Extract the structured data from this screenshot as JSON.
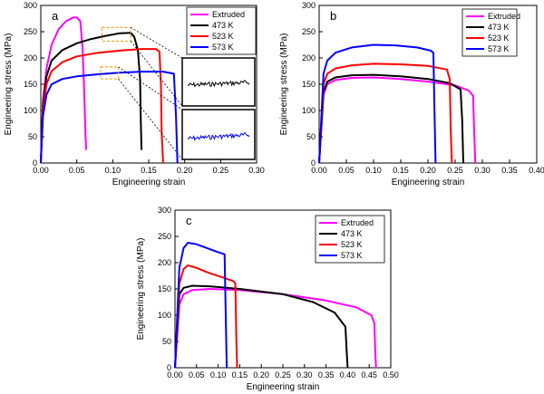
{
  "colors": {
    "Extruded": "#ff00ff",
    "473 K": "#000000",
    "523 K": "#ff0000",
    "573 K": "#0000ff",
    "zoom_box": "#f5a623"
  },
  "chart_data": [
    {
      "type": "line",
      "panel": "a",
      "xlabel": "Engineering strain",
      "ylabel": "Engineering stress  (MPa)",
      "xlim": [
        0.0,
        0.3
      ],
      "ylim": [
        0,
        300
      ],
      "xticks": [
        "0.00",
        "0.05",
        "0.10",
        "0.15",
        "0.20",
        "0.25",
        "0.30"
      ],
      "yticks": [
        "0",
        "50",
        "100",
        "150",
        "200",
        "250",
        "300"
      ],
      "legend": [
        "Extruded",
        "473 K",
        "523 K",
        "573 K"
      ],
      "series": [
        {
          "name": "Extruded",
          "x": [
            0,
            0.003,
            0.008,
            0.015,
            0.025,
            0.035,
            0.045,
            0.05,
            0.055,
            0.058,
            0.06,
            0.062,
            0.063
          ],
          "y": [
            0,
            120,
            180,
            225,
            255,
            270,
            277,
            277,
            270,
            220,
            150,
            60,
            25
          ]
        },
        {
          "name": "473 K",
          "x": [
            0,
            0.003,
            0.008,
            0.015,
            0.03,
            0.05,
            0.07,
            0.09,
            0.11,
            0.125,
            0.13,
            0.135,
            0.138,
            0.139,
            0.14
          ],
          "y": [
            0,
            110,
            165,
            195,
            215,
            228,
            236,
            242,
            247,
            248,
            240,
            215,
            160,
            80,
            25
          ]
        },
        {
          "name": "523 K",
          "x": [
            0,
            0.003,
            0.008,
            0.015,
            0.03,
            0.05,
            0.08,
            0.11,
            0.14,
            0.16,
            0.165,
            0.167,
            0.168,
            0.17
          ],
          "y": [
            0,
            100,
            150,
            175,
            192,
            203,
            210,
            214,
            217,
            217,
            212,
            150,
            60,
            0
          ]
        },
        {
          "name": "573 K",
          "x": [
            0,
            0.003,
            0.008,
            0.015,
            0.03,
            0.05,
            0.08,
            0.11,
            0.14,
            0.17,
            0.185,
            0.188,
            0.19
          ],
          "y": [
            0,
            90,
            130,
            150,
            160,
            165,
            169,
            172,
            174,
            174,
            170,
            90,
            0
          ]
        }
      ]
    },
    {
      "type": "line",
      "panel": "b",
      "xlabel": "Engineering strain",
      "ylabel": "Engineering stress (MPa)",
      "xlim": [
        0.0,
        0.4
      ],
      "ylim": [
        0,
        300
      ],
      "xticks": [
        "0.00",
        "0.05",
        "0.10",
        "0.15",
        "0.20",
        "0.25",
        "0.30",
        "0.35",
        "0.40"
      ],
      "yticks": [
        "0",
        "50",
        "100",
        "150",
        "200",
        "250",
        "300"
      ],
      "legend": [
        "Extruded",
        "473 K",
        "523 K",
        "573 K"
      ],
      "series": [
        {
          "name": "Extruded",
          "x": [
            0,
            0.008,
            0.015,
            0.03,
            0.06,
            0.1,
            0.15,
            0.2,
            0.25,
            0.275,
            0.283,
            0.285,
            0.287
          ],
          "y": [
            0,
            130,
            150,
            158,
            162,
            163,
            160,
            155,
            148,
            138,
            128,
            60,
            0
          ]
        },
        {
          "name": "473 K",
          "x": [
            0,
            0.008,
            0.015,
            0.03,
            0.06,
            0.1,
            0.15,
            0.2,
            0.24,
            0.26,
            0.263,
            0.265
          ],
          "y": [
            0,
            135,
            155,
            163,
            167,
            168,
            165,
            160,
            152,
            140,
            80,
            0
          ]
        },
        {
          "name": "523 K",
          "x": [
            0,
            0.008,
            0.015,
            0.03,
            0.06,
            0.1,
            0.15,
            0.2,
            0.235,
            0.24,
            0.242,
            0.244
          ],
          "y": [
            0,
            150,
            170,
            180,
            186,
            189,
            188,
            185,
            178,
            160,
            60,
            0
          ]
        },
        {
          "name": "573 K",
          "x": [
            0,
            0.008,
            0.015,
            0.03,
            0.06,
            0.1,
            0.14,
            0.18,
            0.205,
            0.21,
            0.212,
            0.214
          ],
          "y": [
            0,
            170,
            195,
            210,
            220,
            225,
            224,
            220,
            214,
            210,
            100,
            0
          ]
        }
      ]
    },
    {
      "type": "line",
      "panel": "c",
      "xlabel": "Engineering strain",
      "ylabel": "Engineering stress (MPa)",
      "xlim": [
        0.0,
        0.5
      ],
      "ylim": [
        0,
        300
      ],
      "xticks": [
        "0.00",
        "0.05",
        "0.10",
        "0.15",
        "0.20",
        "0.25",
        "0.30",
        "0.35",
        "0.40",
        "0.45",
        "0.50"
      ],
      "yticks": [
        "0",
        "50",
        "100",
        "150",
        "200",
        "250",
        "300"
      ],
      "legend": [
        "Extruded",
        "473 K",
        "523 K",
        "573 K"
      ],
      "series": [
        {
          "name": "Extruded",
          "x": [
            0,
            0.01,
            0.02,
            0.04,
            0.08,
            0.15,
            0.25,
            0.35,
            0.42,
            0.455,
            0.462,
            0.464,
            0.466
          ],
          "y": [
            0,
            120,
            140,
            148,
            150,
            148,
            140,
            128,
            115,
            100,
            85,
            30,
            0
          ]
        },
        {
          "name": "473 K",
          "x": [
            0,
            0.01,
            0.02,
            0.04,
            0.08,
            0.15,
            0.25,
            0.32,
            0.37,
            0.395,
            0.398,
            0.4
          ],
          "y": [
            0,
            140,
            152,
            156,
            155,
            150,
            140,
            125,
            105,
            78,
            30,
            0
          ]
        },
        {
          "name": "523 K",
          "x": [
            0,
            0.01,
            0.02,
            0.03,
            0.05,
            0.08,
            0.11,
            0.135,
            0.14,
            0.142,
            0.144
          ],
          "y": [
            0,
            160,
            188,
            195,
            190,
            180,
            172,
            165,
            160,
            60,
            0
          ]
        },
        {
          "name": "573 K",
          "x": [
            0,
            0.01,
            0.02,
            0.03,
            0.05,
            0.08,
            0.1,
            0.115,
            0.118,
            0.12
          ],
          "y": [
            0,
            190,
            228,
            238,
            235,
            226,
            220,
            216,
            80,
            0
          ]
        }
      ]
    }
  ]
}
